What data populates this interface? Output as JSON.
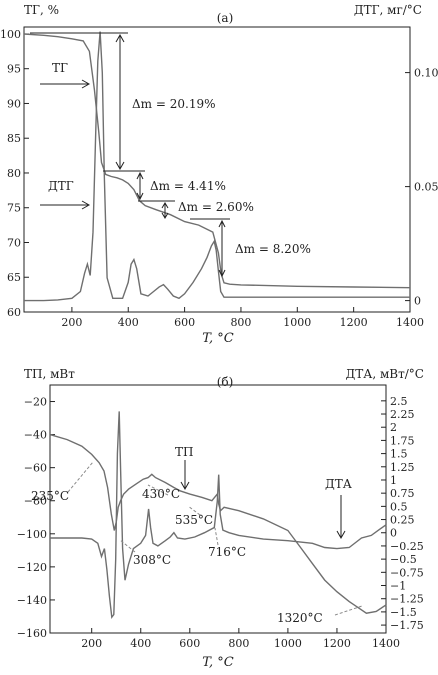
{
  "chart_data": [
    {
      "type": "line",
      "title": "(а)",
      "xlabel": "T, °C",
      "ylabel": "ТГ, %",
      "ylabel_right": "ДТГ, мг/°C",
      "xlim": [
        30,
        1400
      ],
      "ylim": [
        60,
        101
      ],
      "ylim_right": [
        -0.005,
        0.12
      ],
      "x_ticks": [
        200,
        400,
        600,
        800,
        1000,
        1200,
        1400
      ],
      "y_ticks": [
        60,
        65,
        70,
        75,
        80,
        85,
        90,
        95,
        100
      ],
      "y_ticks_right": [
        0,
        0.05,
        0.1
      ],
      "grid": false,
      "series": [
        {
          "name": "ТГ",
          "axis": "left",
          "x": [
            30,
            100,
            150,
            200,
            240,
            262,
            280,
            295,
            305,
            320,
            340,
            360,
            380,
            400,
            420,
            440,
            460,
            500,
            550,
            600,
            650,
            700,
            720,
            730,
            740,
            760,
            800,
            1000,
            1200,
            1400
          ],
          "y": [
            100,
            99.8,
            99.6,
            99.3,
            99.0,
            97.5,
            92.0,
            86.0,
            81.5,
            79.8,
            79.5,
            79.3,
            79.0,
            78.5,
            77.6,
            76.0,
            75.3,
            74.7,
            74.0,
            73.0,
            72.5,
            71.5,
            68.5,
            65.5,
            64.2,
            64.0,
            63.9,
            63.7,
            63.6,
            63.5
          ]
        },
        {
          "name": "ДТГ",
          "axis": "right",
          "x": [
            30,
            100,
            150,
            200,
            230,
            245,
            255,
            265,
            275,
            285,
            292,
            300,
            308,
            315,
            325,
            345,
            380,
            400,
            410,
            420,
            430,
            445,
            470,
            490,
            510,
            525,
            540,
            560,
            580,
            600,
            630,
            660,
            680,
            695,
            705,
            712,
            720,
            728,
            740,
            800,
            1000,
            1200,
            1400
          ],
          "y": [
            0,
            0,
            0.0003,
            0.001,
            0.004,
            0.012,
            0.016,
            0.011,
            0.03,
            0.075,
            0.105,
            0.118,
            0.1,
            0.055,
            0.01,
            0.001,
            0.001,
            0.008,
            0.016,
            0.018,
            0.014,
            0.003,
            0.002,
            0.004,
            0.006,
            0.007,
            0.005,
            0.002,
            0.001,
            0.003,
            0.008,
            0.014,
            0.019,
            0.024,
            0.026,
            0.022,
            0.013,
            0.004,
            0.0015,
            0.0015,
            0.0015,
            0.0015,
            0.0015
          ]
        }
      ],
      "annotations": {
        "tg_label": "ТГ",
        "dtg_label": "ДТГ",
        "dm1": "Δm = 20.19%",
        "dm2": "Δm = 4.41%",
        "dm3": "Δm = 2.60%",
        "dm4": "Δm = 8.20%"
      }
    },
    {
      "type": "line",
      "title": "(б)",
      "xlabel": "T, °C",
      "ylabel": "ТП, мВт",
      "ylabel_right": "ДТА, мВт/°C",
      "xlim": [
        30,
        1400
      ],
      "ylim": [
        -160,
        -10
      ],
      "ylim_right": [
        -1.9,
        2.8
      ],
      "x_ticks": [
        200,
        400,
        600,
        800,
        1000,
        1200,
        1400
      ],
      "y_ticks": [
        -160,
        -140,
        -120,
        -100,
        -80,
        -60,
        -40,
        -20
      ],
      "y_ticks_right": [
        -1.75,
        -1.5,
        -1.25,
        -1.0,
        -0.75,
        -0.5,
        -0.25,
        0,
        0.25,
        0.5,
        0.75,
        1.0,
        1.25,
        1.5,
        1.75,
        2.0,
        2.25,
        2.5
      ],
      "grid": false,
      "series": [
        {
          "name": "ТП",
          "axis": "left",
          "x": [
            30,
            100,
            160,
            200,
            230,
            250,
            265,
            280,
            292,
            300,
            308,
            318,
            330,
            350,
            380,
            410,
            430,
            445,
            460,
            500,
            535,
            560,
            600,
            650,
            690,
            712,
            718,
            725,
            740,
            800,
            900,
            1000,
            1050,
            1100,
            1150,
            1200,
            1250,
            1290,
            1320,
            1360,
            1400
          ],
          "y": [
            -40,
            -43,
            -47,
            -52,
            -57,
            -62,
            -72,
            -88,
            -98,
            -93,
            -84,
            -80,
            -76,
            -73,
            -70,
            -67,
            -66,
            -64,
            -66,
            -69,
            -72,
            -74,
            -76,
            -78,
            -80,
            -76,
            -82,
            -86,
            -84,
            -86,
            -91,
            -98,
            -108,
            -118,
            -128,
            -135,
            -141,
            -145,
            -148,
            -147,
            -143
          ]
        },
        {
          "name": "ДТА",
          "axis": "right",
          "x": [
            30,
            100,
            160,
            200,
            225,
            240,
            252,
            262,
            272,
            282,
            290,
            298,
            305,
            312,
            318,
            326,
            336,
            350,
            370,
            400,
            420,
            432,
            440,
            450,
            470,
            500,
            520,
            535,
            550,
            580,
            620,
            660,
            700,
            712,
            718,
            724,
            735,
            760,
            800,
            900,
            1000,
            1100,
            1150,
            1200,
            1250,
            1300,
            1340,
            1370,
            1400
          ],
          "y": [
            -0.1,
            -0.1,
            -0.1,
            -0.12,
            -0.2,
            -0.45,
            -0.3,
            -0.7,
            -1.2,
            -1.6,
            -1.55,
            -0.5,
            1.5,
            2.3,
            1.2,
            -0.3,
            -0.9,
            -0.6,
            -0.3,
            -0.2,
            -0.05,
            0.45,
            0.1,
            -0.2,
            -0.25,
            -0.15,
            -0.08,
            0.0,
            -0.1,
            -0.12,
            -0.08,
            0.0,
            0.1,
            0.6,
            1.1,
            0.35,
            0.05,
            0.0,
            -0.05,
            -0.12,
            -0.15,
            -0.2,
            -0.28,
            -0.3,
            -0.28,
            -0.1,
            -0.05,
            0.05,
            0.15
          ]
        }
      ],
      "annotations": {
        "tp_label": "ТП",
        "dta_label": "ДТА",
        "t235": "235°C",
        "t308": "308°C",
        "t430": "430°C",
        "t535": "535°C",
        "t716": "716°C",
        "t1320": "1320°C"
      }
    }
  ]
}
